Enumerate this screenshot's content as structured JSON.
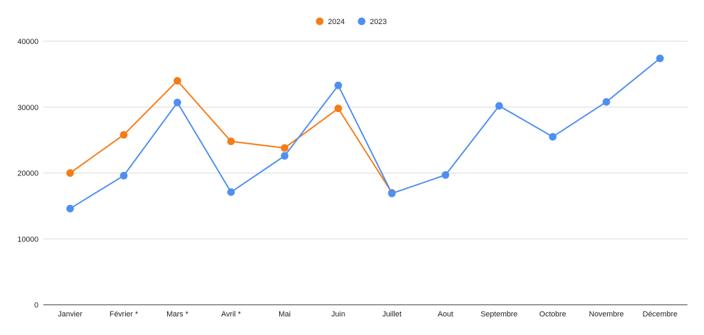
{
  "chart_data": {
    "type": "line",
    "title": "",
    "xlabel": "",
    "ylabel": "",
    "categories": [
      "Janvier",
      "Février *",
      "Mars *",
      "Avril *",
      "Mai",
      "Juin",
      "Juillet",
      "Aout",
      "Septembre",
      "Octobre",
      "Novembre",
      "Décembre"
    ],
    "ylim": [
      0,
      40000
    ],
    "yticks": [
      "0",
      "10000",
      "20000",
      "30000",
      "40000"
    ],
    "grid": true,
    "legend_position": "top-center",
    "series": [
      {
        "name": "2024",
        "color": "#f57c17",
        "values": [
          20000,
          25800,
          34000,
          24800,
          23800,
          29800,
          17000,
          null,
          null,
          null,
          null,
          null
        ]
      },
      {
        "name": "2023",
        "color": "#4e8ff0",
        "values": [
          14600,
          19600,
          30700,
          17100,
          22600,
          33300,
          16900,
          19700,
          30200,
          25500,
          30800,
          37400
        ]
      }
    ]
  }
}
